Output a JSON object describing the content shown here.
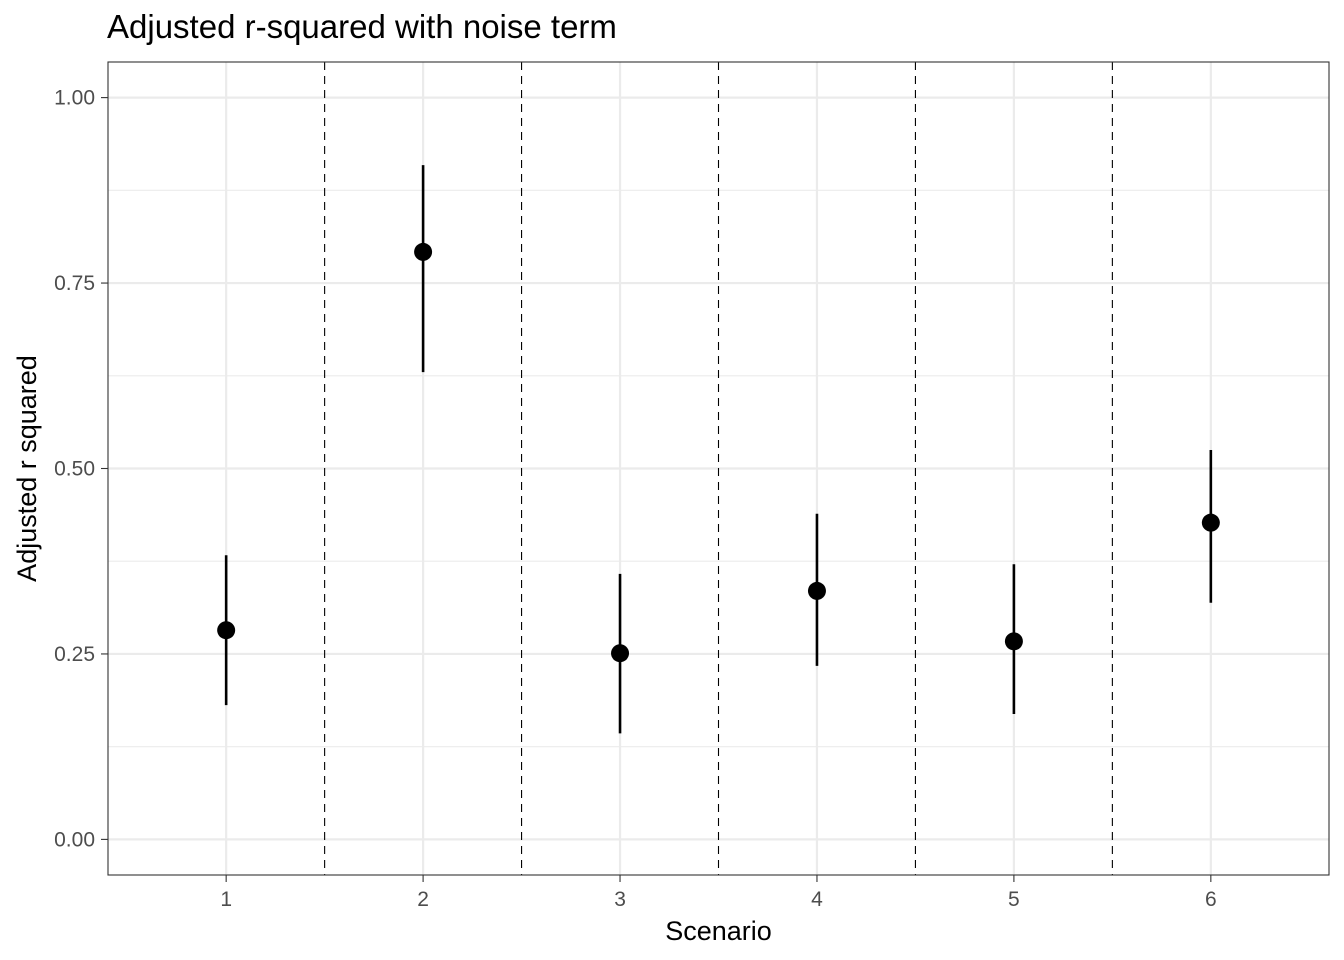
{
  "chart_data": {
    "type": "scatter",
    "title": "Adjusted r-squared with noise term",
    "xlabel": "Scenario",
    "ylabel": "Adjusted r squared",
    "x": [
      "1",
      "2",
      "3",
      "4",
      "5",
      "6"
    ],
    "y": [
      0.282,
      0.792,
      0.251,
      0.335,
      0.267,
      0.427
    ],
    "y_lower": [
      0.181,
      0.63,
      0.143,
      0.234,
      0.169,
      0.319
    ],
    "y_upper": [
      0.383,
      0.909,
      0.358,
      0.439,
      0.371,
      0.525
    ],
    "ylim": [
      -0.048,
      1.048
    ],
    "yticks": [
      "0.00",
      "0.25",
      "0.50",
      "0.75",
      "1.00"
    ],
    "ytick_values": [
      0,
      0.25,
      0.5,
      0.75,
      1.0
    ],
    "xlim": [
      0.4,
      6.6
    ],
    "separators": [
      1.5,
      2.5,
      3.5,
      4.5,
      5.5
    ],
    "grid": true,
    "point_color": "#000000",
    "grid_color": "#ebebeb",
    "panel_border_color": "#333333"
  }
}
